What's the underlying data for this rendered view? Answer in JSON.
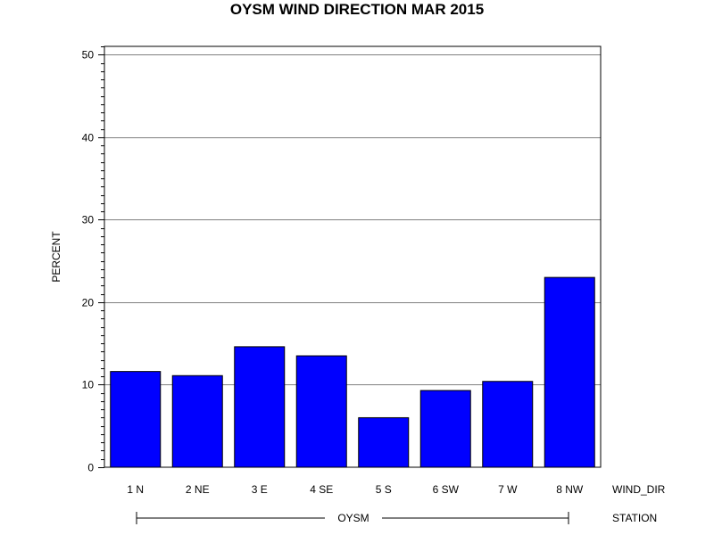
{
  "chart_data": {
    "type": "bar",
    "title": "OYSM WIND DIRECTION MAR 2015",
    "ylabel": "PERCENT",
    "xlabel": "WIND_DIR",
    "group_label": "STATION",
    "group_value": "OYSM",
    "categories": [
      "1 N",
      "2 NE",
      "3 E",
      "4 SE",
      "5 S",
      "6 SW",
      "7 W",
      "8 NW"
    ],
    "values": [
      11.6,
      11.1,
      14.6,
      13.5,
      6.0,
      9.3,
      10.4,
      23.0
    ],
    "ylim": [
      0,
      51
    ],
    "yticks": [
      0,
      10,
      20,
      30,
      40,
      50
    ],
    "grid": true,
    "bar_color": "#0000ff",
    "bar_edge_color": "#000000"
  }
}
